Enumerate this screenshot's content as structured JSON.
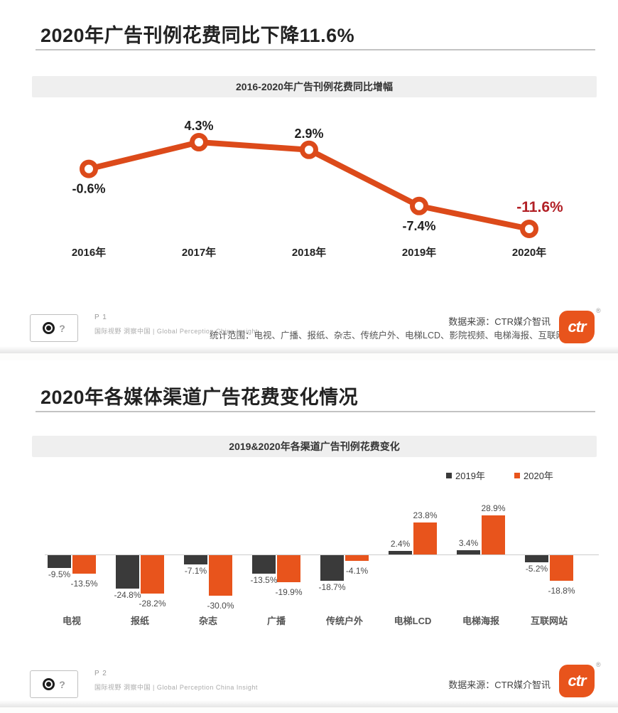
{
  "colors": {
    "accent_orange": "#e8541c",
    "line_orange": "#dc4a1a",
    "dark_series": "#3a3a3a",
    "highlight_red": "#b22026",
    "band_gray": "#efefef",
    "axis_gray": "#cccccc"
  },
  "slide1": {
    "title": "2020年广告刊例花费同比下降11.6%",
    "chart_title": "2016-2020年广告刊例花费同比增幅",
    "page_label": "P 1",
    "brand_tagline": "国际视野  洞察中国 |  Global Perception   China Insight",
    "source": "数据来源：CTR媒介智讯",
    "scope": "统计范围：电视、广播、报纸、杂志、传统户外、电梯LCD、影院视频、电梯海报、互联网站",
    "ctr_logo_text": "ctr",
    "reg_mark": "®"
  },
  "slide2": {
    "title": "2020年各媒体渠道广告花费变化情况",
    "chart_title": "2019&2020年各渠道广告刊例花费变化",
    "page_label": "P 2",
    "brand_tagline": "国际视野  洞察中国 |  Global Perception   China Insight",
    "source": "数据来源：CTR媒介智讯",
    "ctr_logo_text": "ctr",
    "reg_mark": "®"
  },
  "chart_data": [
    {
      "type": "line",
      "title": "2016-2020年广告刊例花费同比增幅",
      "categories": [
        "2016年",
        "2017年",
        "2018年",
        "2019年",
        "2020年"
      ],
      "values": [
        -0.6,
        4.3,
        2.9,
        -7.4,
        -11.6
      ],
      "unit": "%",
      "ylim": [
        -14,
        7
      ],
      "grid": false,
      "line_color": "#dc4a1a",
      "marker_fill": "#ffffff",
      "label_color": "#1f1f1f",
      "highlight_last": true,
      "highlight_color": "#b22026",
      "label_sides": [
        "below",
        "above",
        "above",
        "below",
        "above-right"
      ]
    },
    {
      "type": "bar",
      "title": "2019&2020年各渠道广告刊例花费变化",
      "categories": [
        "电视",
        "报纸",
        "杂志",
        "广播",
        "传统户外",
        "电梯LCD",
        "电梯海报",
        "互联网站"
      ],
      "series": [
        {
          "name": "2019年",
          "color": "#3a3a3a",
          "values": [
            -9.5,
            -24.8,
            -7.1,
            -13.5,
            -18.7,
            2.4,
            3.4,
            -5.2
          ]
        },
        {
          "name": "2020年",
          "color": "#e8541c",
          "values": [
            -13.5,
            -28.2,
            -30.0,
            -19.9,
            -4.1,
            23.8,
            28.9,
            -18.8
          ]
        }
      ],
      "unit": "%",
      "ylim": [
        -32,
        31
      ],
      "grid": false,
      "legend_position": "top-right"
    }
  ]
}
